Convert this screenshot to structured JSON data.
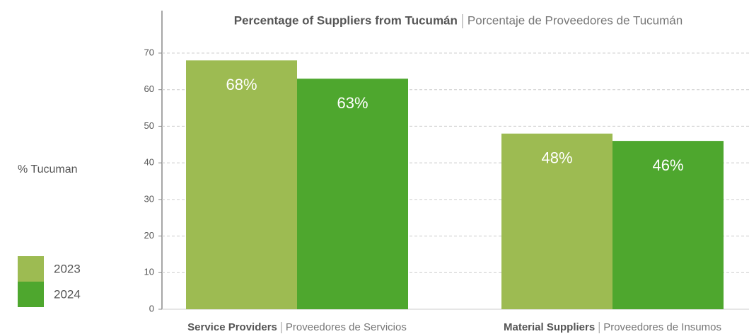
{
  "chart_data": {
    "type": "bar",
    "title": "Percentage of Suppliers from Tucumán",
    "subtitle": "Porcentaje de Proveedores de Tucumán",
    "y_label": "% Tucuman",
    "categories": [
      "Service Providers",
      "Material Suppliers"
    ],
    "category_subtitles": [
      "Proveedores de Servicios",
      "Proveedores de Insumos"
    ],
    "series": [
      {
        "name": "2023",
        "color": "#9dbb52",
        "values": [
          68,
          48
        ],
        "value_labels": [
          "68%",
          "48%"
        ]
      },
      {
        "name": "2024",
        "color": "#4ea72e",
        "values": [
          63,
          46
        ],
        "value_labels": [
          "63%",
          "46%"
        ]
      }
    ],
    "ylim": [
      0,
      70
    ],
    "yticks": [
      0,
      10,
      20,
      30,
      40,
      50,
      60,
      70
    ],
    "grid": true
  }
}
